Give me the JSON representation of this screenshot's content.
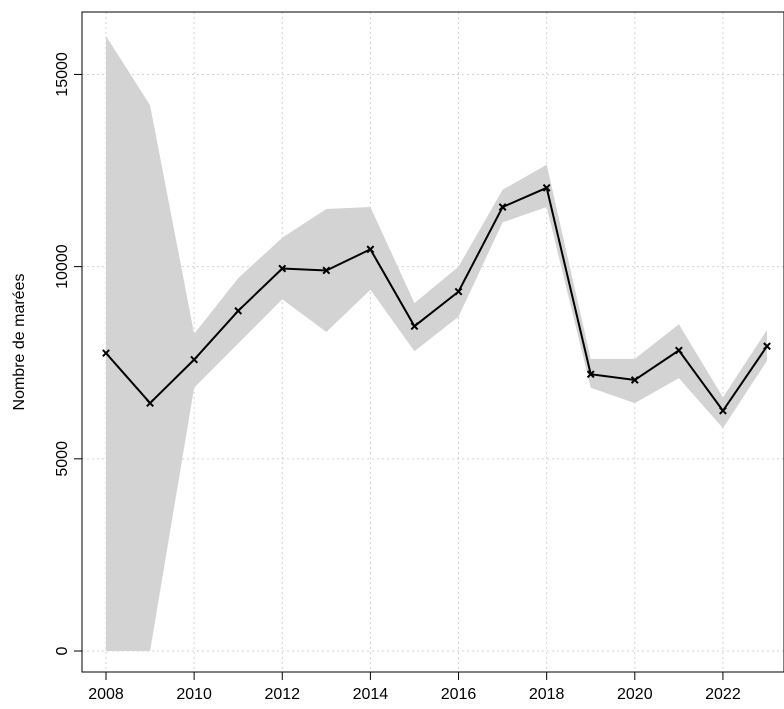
{
  "chart_data": {
    "type": "line",
    "title": "",
    "xlabel": "",
    "ylabel": "Nombre de marées",
    "xlim": [
      2008,
      2023
    ],
    "ylim": [
      0,
      16000
    ],
    "grid": true,
    "x_ticks": [
      "2008",
      "2010",
      "2012",
      "2014",
      "2016",
      "2018",
      "2020",
      "2022"
    ],
    "y_ticks": [
      "0",
      "5000",
      "10000",
      "15000"
    ],
    "series": [
      {
        "x": [
          2008,
          2009,
          2010,
          2011,
          2012,
          2013,
          2014,
          2015,
          2016,
          2017,
          2018,
          2019,
          2020,
          2021,
          2022,
          2023
        ],
        "values": [
          7750,
          6450,
          7580,
          8850,
          9950,
          9900,
          10450,
          8450,
          9350,
          11550,
          12050,
          7200,
          7050,
          7820,
          6250,
          7930
        ],
        "lower": [
          0,
          0,
          6850,
          8000,
          9150,
          8300,
          9400,
          7800,
          8700,
          11150,
          11550,
          6850,
          6450,
          7100,
          5800,
          7550
        ],
        "upper": [
          16000,
          14200,
          8250,
          9700,
          10750,
          11500,
          11550,
          9050,
          10000,
          12000,
          12650,
          7600,
          7600,
          8500,
          6600,
          8350
        ]
      }
    ],
    "colors": {
      "band": "#d3d3d3",
      "line": "#000000",
      "grid": "#d3d3d3"
    }
  }
}
